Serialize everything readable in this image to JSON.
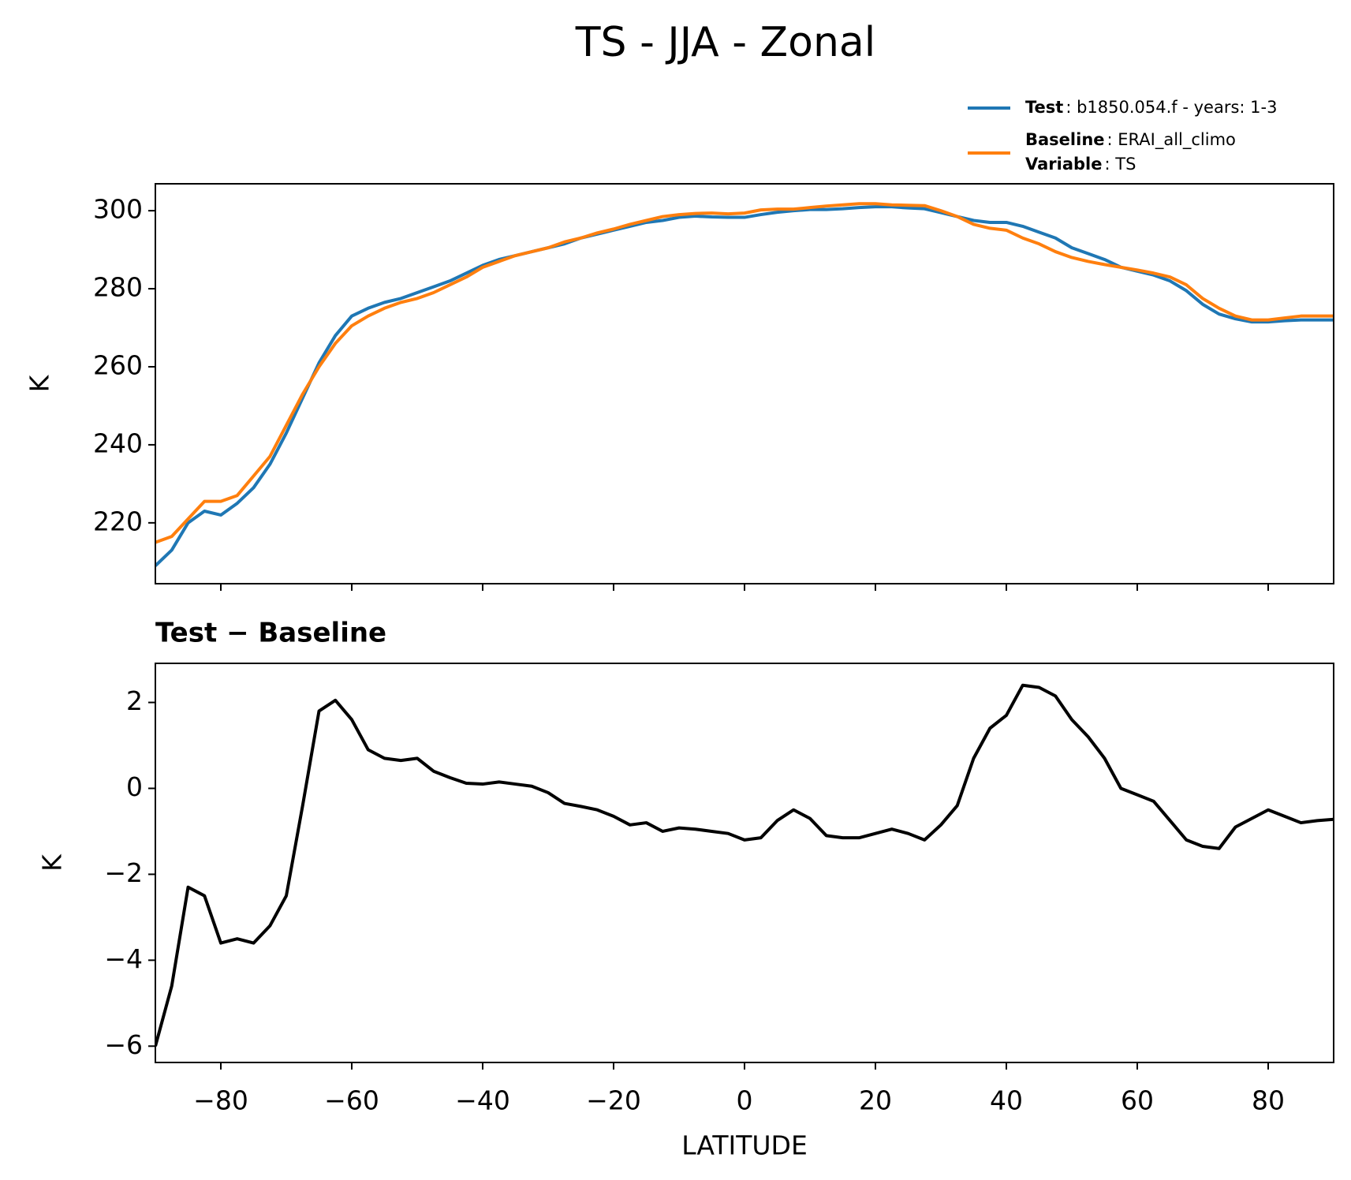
{
  "title": "TS - JJA - Zonal",
  "chart_data": [
    {
      "type": "line",
      "ylabel": "K",
      "show_xticklabels": false,
      "xlim": [
        -90,
        90
      ],
      "ylim": [
        204.4,
        306.9
      ],
      "xticks": [
        -80,
        -60,
        -40,
        -20,
        0,
        20,
        40,
        60,
        80
      ],
      "yticks": [
        220,
        240,
        260,
        280,
        300
      ],
      "x": [
        -90,
        -87.5,
        -85,
        -82.5,
        -80,
        -77.5,
        -75,
        -72.5,
        -70,
        -67.5,
        -65,
        -62.5,
        -60,
        -57.5,
        -55,
        -52.5,
        -50,
        -47.5,
        -45,
        -42.5,
        -40,
        -37.5,
        -35,
        -32.5,
        -30,
        -27.5,
        -25,
        -22.5,
        -20,
        -17.5,
        -15,
        -12.5,
        -10,
        -7.5,
        -5,
        -2.5,
        0,
        2.5,
        5,
        7.5,
        10,
        12.5,
        15,
        17.5,
        20,
        22.5,
        25,
        27.5,
        30,
        32.5,
        35,
        37.5,
        40,
        42.5,
        45,
        47.5,
        50,
        52.5,
        55,
        57.5,
        60,
        62.5,
        65,
        67.5,
        70,
        72.5,
        75,
        77.5,
        80,
        82.5,
        85,
        87.5,
        90
      ],
      "series": [
        {
          "name": "Test",
          "label": ": b1850.054.f - years: 1-3",
          "color": "#1f77b4",
          "values": [
            209,
            213,
            220,
            223,
            222,
            225,
            229,
            235,
            243,
            252,
            261,
            268,
            273,
            275,
            276.5,
            277.5,
            279,
            280.5,
            282,
            284,
            286,
            287.5,
            288.5,
            289.5,
            290.5,
            291.5,
            293,
            294,
            295,
            296,
            297,
            297.5,
            298.3,
            298.6,
            298.4,
            298.3,
            298.3,
            299,
            299.6,
            300,
            300.3,
            300.3,
            300.5,
            300.8,
            301,
            301,
            300.7,
            300.5,
            299.5,
            298.5,
            297.5,
            297,
            297,
            296,
            294.5,
            293,
            290.5,
            289,
            287.5,
            285.5,
            284.5,
            283.5,
            282,
            279.5,
            276,
            273.5,
            272.3,
            271.5,
            271.5,
            271.8,
            272,
            272,
            272
          ]
        },
        {
          "name": "Baseline",
          "label": ": ERAI_all_climo",
          "color": "#ff7f0e",
          "values": [
            215,
            216.5,
            221,
            225.5,
            225.5,
            227,
            232,
            237,
            245,
            253,
            260,
            266,
            270.5,
            273,
            275,
            276.5,
            277.5,
            279,
            281,
            283,
            285.5,
            287,
            288.5,
            289.5,
            290.5,
            292,
            293,
            294.3,
            295.3,
            296.5,
            297.5,
            298.5,
            299,
            299.3,
            299.4,
            299.2,
            299.4,
            300.2,
            300.4,
            300.4,
            300.8,
            301.2,
            301.5,
            301.8,
            301.8,
            301.5,
            301.4,
            301.3,
            300,
            298.5,
            296.5,
            295.5,
            295,
            293,
            291.5,
            289.5,
            288,
            287,
            286.2,
            285.5,
            284.8,
            284,
            283,
            281,
            277.5,
            275,
            273,
            272,
            272,
            272.5,
            273,
            273,
            273
          ]
        }
      ],
      "legend_extra": {
        "name": "Variable",
        "label": ": TS"
      }
    },
    {
      "type": "line",
      "subtitle": "Test − Baseline",
      "ylabel": "K",
      "xlabel": "LATITUDE",
      "xlim": [
        -90,
        90
      ],
      "ylim": [
        -6.38,
        2.91
      ],
      "xticks": [
        {
          "value": -80,
          "label": "−80"
        },
        {
          "value": -60,
          "label": "−60"
        },
        {
          "value": -40,
          "label": "−40"
        },
        {
          "value": -20,
          "label": "−20"
        },
        0,
        20,
        40,
        60,
        80
      ],
      "yticks": [
        {
          "value": -6,
          "label": "−6"
        },
        {
          "value": -4,
          "label": "−4"
        },
        {
          "value": -2,
          "label": "−2"
        },
        0,
        2
      ],
      "x": [
        -90,
        -87.5,
        -85,
        -82.5,
        -80,
        -77.5,
        -75,
        -72.5,
        -70,
        -67.5,
        -65,
        -62.5,
        -60,
        -57.5,
        -55,
        -52.5,
        -50,
        -47.5,
        -45,
        -42.5,
        -40,
        -37.5,
        -35,
        -32.5,
        -30,
        -27.5,
        -25,
        -22.5,
        -20,
        -17.5,
        -15,
        -12.5,
        -10,
        -7.5,
        -5,
        -2.5,
        0,
        2.5,
        5,
        7.5,
        10,
        12.5,
        15,
        17.5,
        20,
        22.5,
        25,
        27.5,
        30,
        32.5,
        35,
        37.5,
        40,
        42.5,
        45,
        47.5,
        50,
        52.5,
        55,
        57.5,
        60,
        62.5,
        65,
        67.5,
        70,
        72.5,
        75,
        77.5,
        80,
        82.5,
        85,
        87.5,
        90
      ],
      "series": [
        {
          "color": "#000000",
          "values": [
            -6.0,
            -4.6,
            -2.3,
            -2.5,
            -3.6,
            -3.5,
            -3.6,
            -3.2,
            -2.5,
            -0.4,
            1.8,
            2.05,
            1.6,
            0.9,
            0.7,
            0.65,
            0.7,
            0.4,
            0.25,
            0.12,
            0.1,
            0.15,
            0.1,
            0.05,
            -0.1,
            -0.35,
            -0.42,
            -0.5,
            -0.65,
            -0.85,
            -0.8,
            -1.0,
            -0.92,
            -0.95,
            -1.0,
            -1.05,
            -1.2,
            -1.15,
            -0.75,
            -0.5,
            -0.7,
            -1.1,
            -1.15,
            -1.15,
            -1.05,
            -0.95,
            -1.05,
            -1.2,
            -0.85,
            -0.4,
            0.7,
            1.4,
            1.7,
            2.4,
            2.35,
            2.15,
            1.6,
            1.2,
            0.7,
            0,
            -0.15,
            -0.3,
            -0.75,
            -1.2,
            -1.35,
            -1.4,
            -0.9,
            -0.7,
            -0.5,
            -0.65,
            -0.8,
            -0.75,
            -0.72
          ]
        }
      ]
    }
  ]
}
